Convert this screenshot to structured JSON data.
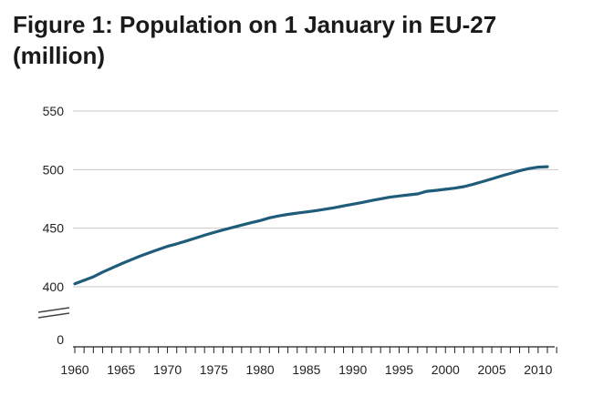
{
  "chart_data": {
    "type": "line",
    "title": "Figure 1: Population on 1 January in EU-27 (million)",
    "xlabel": "",
    "ylabel": "",
    "x": [
      1960,
      1961,
      1962,
      1963,
      1964,
      1965,
      1966,
      1967,
      1968,
      1969,
      1970,
      1971,
      1972,
      1973,
      1974,
      1975,
      1976,
      1977,
      1978,
      1979,
      1980,
      1981,
      1982,
      1983,
      1984,
      1985,
      1986,
      1987,
      1988,
      1989,
      1990,
      1991,
      1992,
      1993,
      1994,
      1995,
      1996,
      1997,
      1998,
      1999,
      2000,
      2001,
      2002,
      2003,
      2004,
      2005,
      2006,
      2007,
      2008,
      2009,
      2010,
      2011
    ],
    "series": [
      {
        "name": "",
        "color": "#1f5c7a",
        "values": [
          402.6,
          405.5,
          408.5,
          412.5,
          416.0,
          419.5,
          422.8,
          426.0,
          429.0,
          431.8,
          434.5,
          436.6,
          439.0,
          441.5,
          444.0,
          446.3,
          448.5,
          450.6,
          452.6,
          454.6,
          456.5,
          458.8,
          460.5,
          461.8,
          462.9,
          463.9,
          465.0,
          466.2,
          467.5,
          469.0,
          470.5,
          472.0,
          473.6,
          475.1,
          476.5,
          477.5,
          478.4,
          479.3,
          481.5,
          482.3,
          483.2,
          484.2,
          485.5,
          487.5,
          489.8,
          492.1,
          494.5,
          496.8,
          499.0,
          500.9,
          502.1,
          502.5
        ]
      }
    ],
    "ylim": [
      0,
      550
    ],
    "y_axis_break": true,
    "y_ticks": [
      0,
      400,
      450,
      500,
      550
    ],
    "x_tick_labels": [
      1960,
      1965,
      1970,
      1975,
      1980,
      1985,
      1990,
      1995,
      2000,
      2005,
      2010
    ],
    "x_minor_ticks_every": 1,
    "grid": "horizontal",
    "grid_color": "#c8c8c8",
    "line_color": "#1f5c7a"
  }
}
